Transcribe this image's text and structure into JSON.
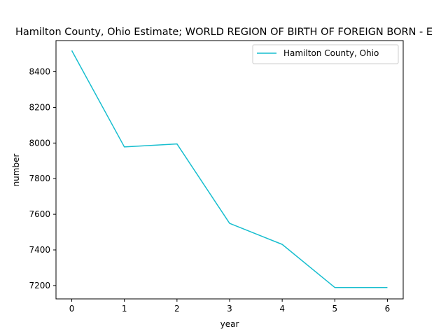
{
  "chart_data": {
    "type": "line",
    "title": "Hamilton County, Ohio Estimate; WORLD REGION OF BIRTH OF FOREIGN BORN - E",
    "xlabel": "year",
    "ylabel": "number",
    "x": [
      0,
      1,
      2,
      3,
      4,
      5,
      6
    ],
    "x_ticks": [
      0,
      1,
      2,
      3,
      4,
      5,
      6
    ],
    "y_ticks": [
      7200,
      7400,
      7600,
      7800,
      8000,
      8200,
      8400
    ],
    "xlim": [
      -0.3,
      6.3
    ],
    "ylim": [
      7125,
      8575
    ],
    "grid": false,
    "legend_position": "top-right",
    "series": [
      {
        "name": "Hamilton County, Ohio",
        "color": "#17becf",
        "values": [
          8519,
          7978,
          7995,
          7549,
          7431,
          7189,
          7189
        ]
      }
    ]
  }
}
